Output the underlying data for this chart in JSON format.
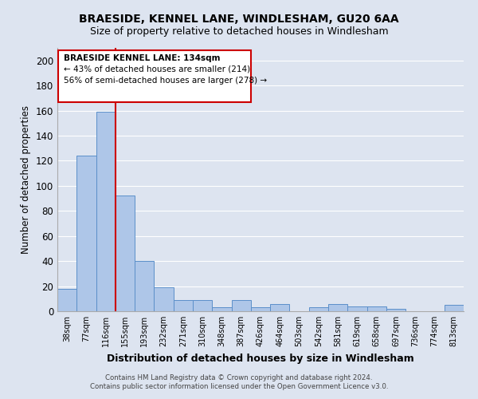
{
  "title": "BRAESIDE, KENNEL LANE, WINDLESHAM, GU20 6AA",
  "subtitle": "Size of property relative to detached houses in Windlesham",
  "xlabel": "Distribution of detached houses by size in Windlesham",
  "ylabel": "Number of detached properties",
  "categories": [
    "38sqm",
    "77sqm",
    "116sqm",
    "155sqm",
    "193sqm",
    "232sqm",
    "271sqm",
    "310sqm",
    "348sqm",
    "387sqm",
    "426sqm",
    "464sqm",
    "503sqm",
    "542sqm",
    "581sqm",
    "619sqm",
    "658sqm",
    "697sqm",
    "736sqm",
    "774sqm",
    "813sqm"
  ],
  "values": [
    18,
    124,
    159,
    92,
    40,
    19,
    9,
    9,
    3,
    9,
    3,
    6,
    0,
    3,
    6,
    4,
    4,
    2,
    0,
    0,
    5
  ],
  "bar_color": "#aec6e8",
  "bar_edge_color": "#5b8fc9",
  "background_color": "#dde4f0",
  "grid_color": "#ffffff",
  "vline_color": "#cc0000",
  "annotation_title": "BRAESIDE KENNEL LANE: 134sqm",
  "annotation_line1": "← 43% of detached houses are smaller (214)",
  "annotation_line2": "56% of semi-detached houses are larger (278) →",
  "annotation_box_color": "#cc0000",
  "ylim": [
    0,
    210
  ],
  "yticks": [
    0,
    20,
    40,
    60,
    80,
    100,
    120,
    140,
    160,
    180,
    200
  ],
  "footer1": "Contains HM Land Registry data © Crown copyright and database right 2024.",
  "footer2": "Contains public sector information licensed under the Open Government Licence v3.0.",
  "title_fontsize": 10,
  "subtitle_fontsize": 9
}
